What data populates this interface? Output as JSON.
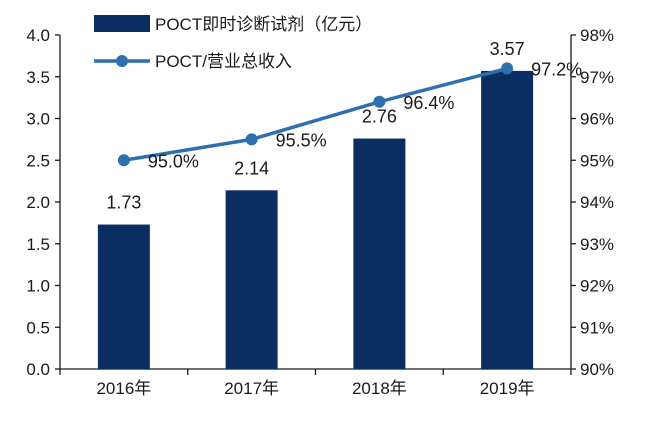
{
  "chart_data": {
    "type": "bar",
    "categories": [
      "2016年",
      "2017年",
      "2018年",
      "2019年"
    ],
    "series": [
      {
        "name": "POCT即时诊断试剂（亿元）",
        "type": "bar",
        "axis": "left",
        "values": [
          1.73,
          2.14,
          2.76,
          3.57
        ],
        "labels": [
          "1.73",
          "2.14",
          "2.76",
          "3.57"
        ],
        "color": "#0b2e62"
      },
      {
        "name": "POCT/营业总收入",
        "type": "line",
        "axis": "right",
        "values": [
          95.0,
          95.5,
          96.4,
          97.2
        ],
        "labels": [
          "95.0%",
          "95.5%",
          "96.4%",
          "97.2%"
        ],
        "color": "#2e6fb0"
      }
    ],
    "y_left": {
      "range": [
        0,
        4
      ],
      "ticks": [
        "0.0",
        "0.5",
        "1.0",
        "1.5",
        "2.0",
        "2.5",
        "3.0",
        "3.5",
        "4.0"
      ]
    },
    "y_right": {
      "range": [
        90,
        98
      ],
      "ticks": [
        "90%",
        "91%",
        "92%",
        "93%",
        "94%",
        "95%",
        "96%",
        "97%",
        "98%"
      ]
    },
    "grid": false,
    "legend_position": "top-left"
  }
}
